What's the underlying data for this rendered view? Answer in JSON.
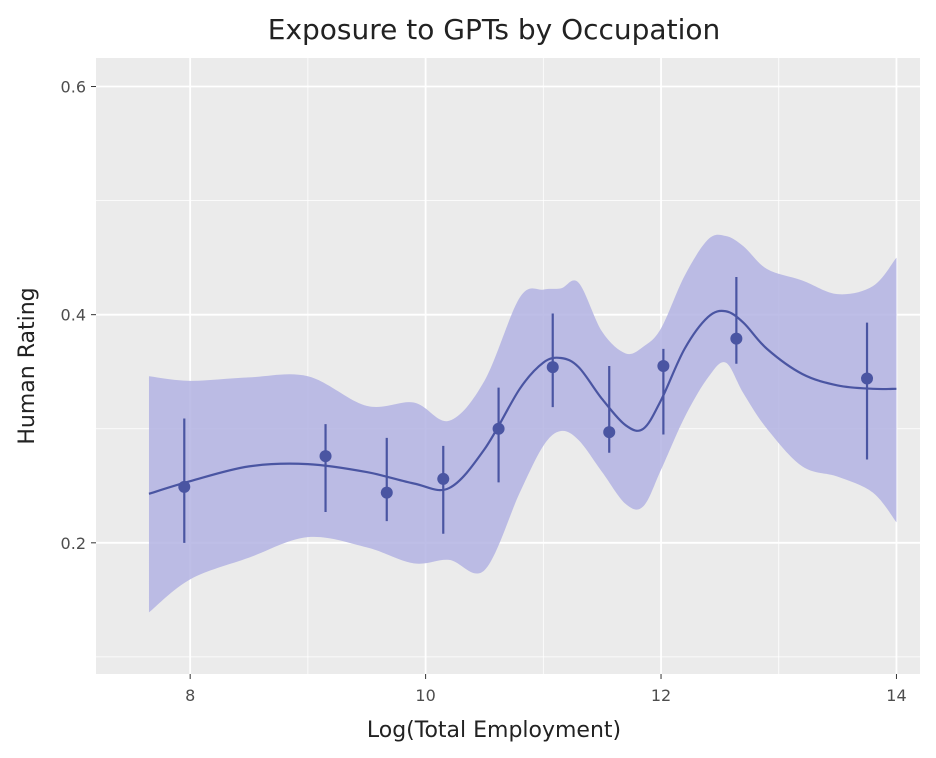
{
  "chart_data": {
    "type": "scatter",
    "title": "Exposure to GPTs by Occupation",
    "xlabel": "Log(Total Employment)",
    "ylabel": "Human Rating",
    "xlim": [
      7.2,
      14.2
    ],
    "ylim": [
      0.085,
      0.625
    ],
    "x_ticks": [
      8,
      10,
      12,
      14
    ],
    "x_tick_labels": [
      "8",
      "10",
      "12",
      "14"
    ],
    "y_ticks": [
      0.2,
      0.4,
      0.6
    ],
    "y_tick_labels": [
      "0.2",
      "0.4",
      "0.6"
    ],
    "grid": true,
    "colors": {
      "panel": "#ebebeb",
      "grid": "#ffffff",
      "series": "#4a55a2",
      "band": "#b3b3e3"
    },
    "points": [
      {
        "x": 7.95,
        "y": 0.249,
        "ymin": 0.2,
        "ymax": 0.309
      },
      {
        "x": 9.15,
        "y": 0.276,
        "ymin": 0.227,
        "ymax": 0.304
      },
      {
        "x": 9.67,
        "y": 0.244,
        "ymin": 0.219,
        "ymax": 0.292
      },
      {
        "x": 10.15,
        "y": 0.256,
        "ymin": 0.208,
        "ymax": 0.285
      },
      {
        "x": 10.62,
        "y": 0.3,
        "ymin": 0.253,
        "ymax": 0.336
      },
      {
        "x": 11.08,
        "y": 0.354,
        "ymin": 0.319,
        "ymax": 0.401
      },
      {
        "x": 11.56,
        "y": 0.297,
        "ymin": 0.279,
        "ymax": 0.355
      },
      {
        "x": 12.02,
        "y": 0.355,
        "ymin": 0.295,
        "ymax": 0.37
      },
      {
        "x": 12.64,
        "y": 0.379,
        "ymin": 0.357,
        "ymax": 0.433
      },
      {
        "x": 13.75,
        "y": 0.344,
        "ymin": 0.273,
        "ymax": 0.393
      }
    ],
    "smooth": {
      "x": [
        7.65,
        8.0,
        8.5,
        9.0,
        9.5,
        9.9,
        10.2,
        10.5,
        10.8,
        11.0,
        11.15,
        11.3,
        11.5,
        11.7,
        11.85,
        12.0,
        12.2,
        12.4,
        12.55,
        12.7,
        12.9,
        13.2,
        13.5,
        13.8,
        14.0
      ],
      "y": [
        0.243,
        0.254,
        0.267,
        0.269,
        0.262,
        0.252,
        0.248,
        0.282,
        0.335,
        0.358,
        0.362,
        0.354,
        0.326,
        0.303,
        0.3,
        0.325,
        0.37,
        0.398,
        0.403,
        0.393,
        0.37,
        0.348,
        0.338,
        0.335,
        0.335
      ],
      "upper": [
        0.346,
        0.342,
        0.345,
        0.346,
        0.32,
        0.323,
        0.307,
        0.342,
        0.415,
        0.422,
        0.423,
        0.428,
        0.385,
        0.366,
        0.372,
        0.388,
        0.434,
        0.466,
        0.469,
        0.46,
        0.44,
        0.43,
        0.418,
        0.425,
        0.45
      ],
      "lower": [
        0.139,
        0.168,
        0.187,
        0.205,
        0.196,
        0.182,
        0.185,
        0.176,
        0.244,
        0.285,
        0.298,
        0.29,
        0.262,
        0.234,
        0.232,
        0.264,
        0.31,
        0.345,
        0.358,
        0.331,
        0.3,
        0.267,
        0.258,
        0.244,
        0.218
      ]
    }
  }
}
